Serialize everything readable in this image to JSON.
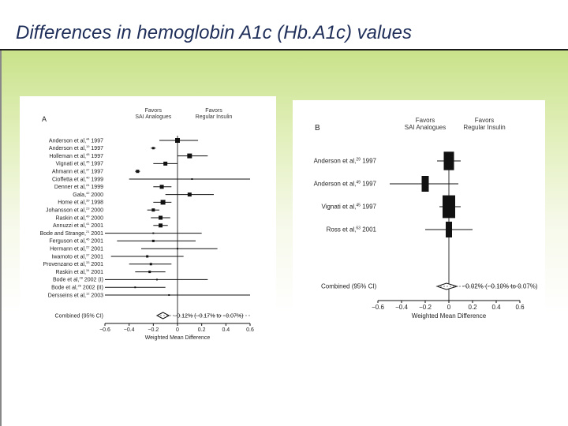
{
  "slide": {
    "title": "Differences in hemoglobin A1c (Hb.A1c) values"
  },
  "chart_data": [
    {
      "type": "forest",
      "panel_label": "A",
      "headers": [
        "Favors\nSAI Analogues",
        "Favors\nRegular Insulin"
      ],
      "studies": [
        {
          "label": "Anderson et al,",
          "ref": "44",
          "year": "1997",
          "est": 0.0,
          "lo": -0.15,
          "hi": 0.17,
          "w": 6
        },
        {
          "label": "Anderson et al,",
          "ref": "19",
          "year": "1997",
          "est": -0.2,
          "lo": -0.22,
          "hi": -0.18,
          "w": 3
        },
        {
          "label": "Holleman et al,",
          "ref": "48",
          "year": "1997",
          "est": 0.1,
          "lo": 0.0,
          "hi": 0.25,
          "w": 6
        },
        {
          "label": "Vignati et al,",
          "ref": "45",
          "year": "1997",
          "est": -0.1,
          "lo": -0.2,
          "hi": 0.0,
          "w": 5
        },
        {
          "label": "Ahmann et al,",
          "ref": "37",
          "year": "1997",
          "est": -0.33,
          "lo": -0.35,
          "hi": -0.31,
          "w": 4
        },
        {
          "label": "Cioffetta et al,",
          "ref": "40",
          "year": "1999",
          "est": 0.12,
          "lo": -0.4,
          "hi": 0.6,
          "w": 2
        },
        {
          "label": "Denner et al,",
          "ref": "24",
          "year": "1999",
          "est": -0.13,
          "lo": -0.2,
          "hi": -0.05,
          "w": 5
        },
        {
          "label": "Gala,",
          "ref": "42",
          "year": "2000",
          "est": 0.1,
          "lo": -0.1,
          "hi": 0.3,
          "w": 5
        },
        {
          "label": "Home et al,",
          "ref": "39",
          "year": "1998",
          "est": -0.12,
          "lo": -0.2,
          "hi": -0.05,
          "w": 6
        },
        {
          "label": "Johansson et al,",
          "ref": "23",
          "year": "2000",
          "est": -0.2,
          "lo": -0.25,
          "hi": -0.15,
          "w": 4
        },
        {
          "label": "Raskin et al,",
          "ref": "49",
          "year": "2000",
          "est": -0.14,
          "lo": -0.22,
          "hi": -0.06,
          "w": 5
        },
        {
          "label": "Annuzzi et al,",
          "ref": "41",
          "year": "2001",
          "est": -0.14,
          "lo": -0.2,
          "hi": -0.08,
          "w": 5
        },
        {
          "label": "Bode and Strange,",
          "ref": "21",
          "year": "2001",
          "est": -0.2,
          "lo": -0.6,
          "hi": 0.2,
          "w": 2
        },
        {
          "label": "Ferguson et al,",
          "ref": "46",
          "year": "2001",
          "est": -0.2,
          "lo": -0.5,
          "hi": 0.15,
          "w": 3
        },
        {
          "label": "Hermann et al,",
          "ref": "22",
          "year": "2001",
          "est": 0.0,
          "lo": -0.3,
          "hi": 0.33,
          "w": 2
        },
        {
          "label": "Iwamoto et al,",
          "ref": "37",
          "year": "2001",
          "est": -0.25,
          "lo": -0.55,
          "hi": 0.05,
          "w": 3
        },
        {
          "label": "Provenzano et al,",
          "ref": "33",
          "year": "2001",
          "est": -0.22,
          "lo": -0.4,
          "hi": -0.05,
          "w": 3
        },
        {
          "label": "Raskin et al,",
          "ref": "34",
          "year": "2001",
          "est": -0.23,
          "lo": -0.35,
          "hi": -0.1,
          "w": 3
        },
        {
          "label": "Bode et al,",
          "ref": "28",
          "year": "2002 (I)",
          "est": -0.17,
          "lo": -0.6,
          "hi": 0.25,
          "w": 2
        },
        {
          "label": "Bode et al,",
          "ref": "26",
          "year": "2002 (II)",
          "est": -0.35,
          "lo": -0.6,
          "hi": -0.1,
          "w": 2
        },
        {
          "label": "Dersseins et al,",
          "ref": "12",
          "year": "2003",
          "est": -0.07,
          "lo": -0.6,
          "hi": 0.6,
          "w": 2
        }
      ],
      "combined": {
        "label": "Combined (95% CI)",
        "est": -0.12,
        "lo": -0.17,
        "hi": -0.07,
        "text": "−0.12% (−0.17% to −0.07%)"
      },
      "xticks": [
        "−0.6",
        "−0.4",
        "−0.2",
        "0",
        "0.2",
        "0.4",
        "0.6"
      ],
      "xlim": [
        -0.6,
        0.6
      ],
      "xlabel": "Weighted Mean Difference"
    },
    {
      "type": "forest",
      "panel_label": "B",
      "headers": [
        "Favors\nSAI Analogues",
        "Favors\nRegular Insulin"
      ],
      "studies": [
        {
          "label": "Anderson et al,",
          "ref": "29",
          "year": "1997",
          "est": 0.0,
          "lo": -0.1,
          "hi": 0.1,
          "w": 13
        },
        {
          "label": "Anderson et al,",
          "ref": "49",
          "year": "1997",
          "est": -0.2,
          "lo": -0.5,
          "hi": 0.08,
          "w": 9
        },
        {
          "label": "Vignati et al,",
          "ref": "45",
          "year": "1997",
          "est": 0.0,
          "lo": -0.08,
          "hi": 0.1,
          "w": 16
        },
        {
          "label": "Ross et al,",
          "ref": "63",
          "year": "2001",
          "est": 0.0,
          "lo": -0.2,
          "hi": 0.2,
          "w": 8
        }
      ],
      "combined": {
        "label": "Combined (95% CI)",
        "est": -0.02,
        "lo": -0.1,
        "hi": 0.07,
        "text": "−0.02% (−0.10% to 0.07%)"
      },
      "xticks": [
        "−0.6",
        "−0.4",
        "−0.2",
        "0",
        "0.2",
        "0.4",
        "0.6"
      ],
      "xlim": [
        -0.6,
        0.6
      ],
      "xlabel": "Weighted Mean Difference"
    }
  ]
}
